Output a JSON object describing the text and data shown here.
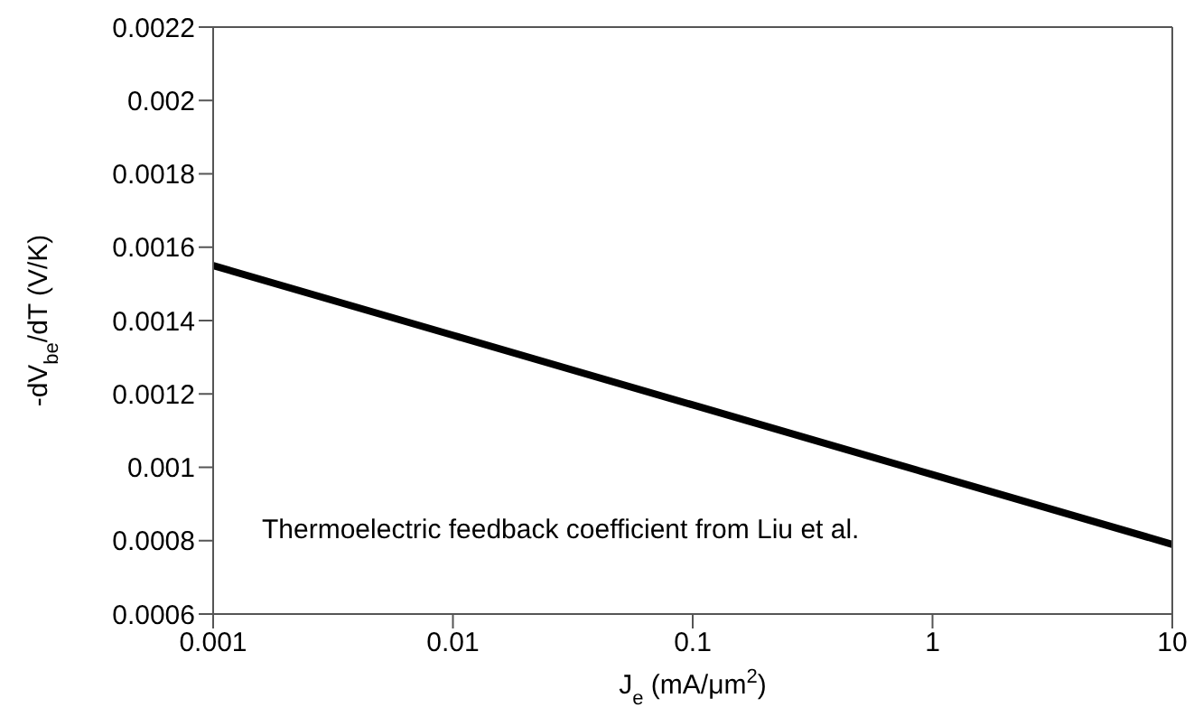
{
  "chart_data": {
    "type": "line",
    "xlabel": "J$_{e}$  (mA/μm$^{2}$)",
    "ylabel": "-dV$_{be}$/dT (V/K)",
    "x": [
      0.001,
      0.01,
      0.1,
      1,
      10
    ],
    "series": [
      {
        "color": "#000000",
        "values": [
          0.00155,
          0.00136,
          0.00117,
          0.00098,
          0.00079
        ]
      }
    ],
    "log": "x",
    "xlim": [
      0.001,
      10
    ],
    "xticks": [
      0.001,
      0.01,
      0.1,
      1,
      10
    ],
    "ylim": [
      0.0006,
      0.0022
    ],
    "yticks": [
      0.0006,
      0.0008,
      0.001,
      0.0012,
      0.0014,
      0.0016,
      0.0018,
      0.002,
      0.0022
    ],
    "grid": false,
    "legend": false,
    "marker": "none",
    "line_style": "solid",
    "annotations": [
      "Thermoelectric feedback coefficient from Liu et al."
    ]
  }
}
